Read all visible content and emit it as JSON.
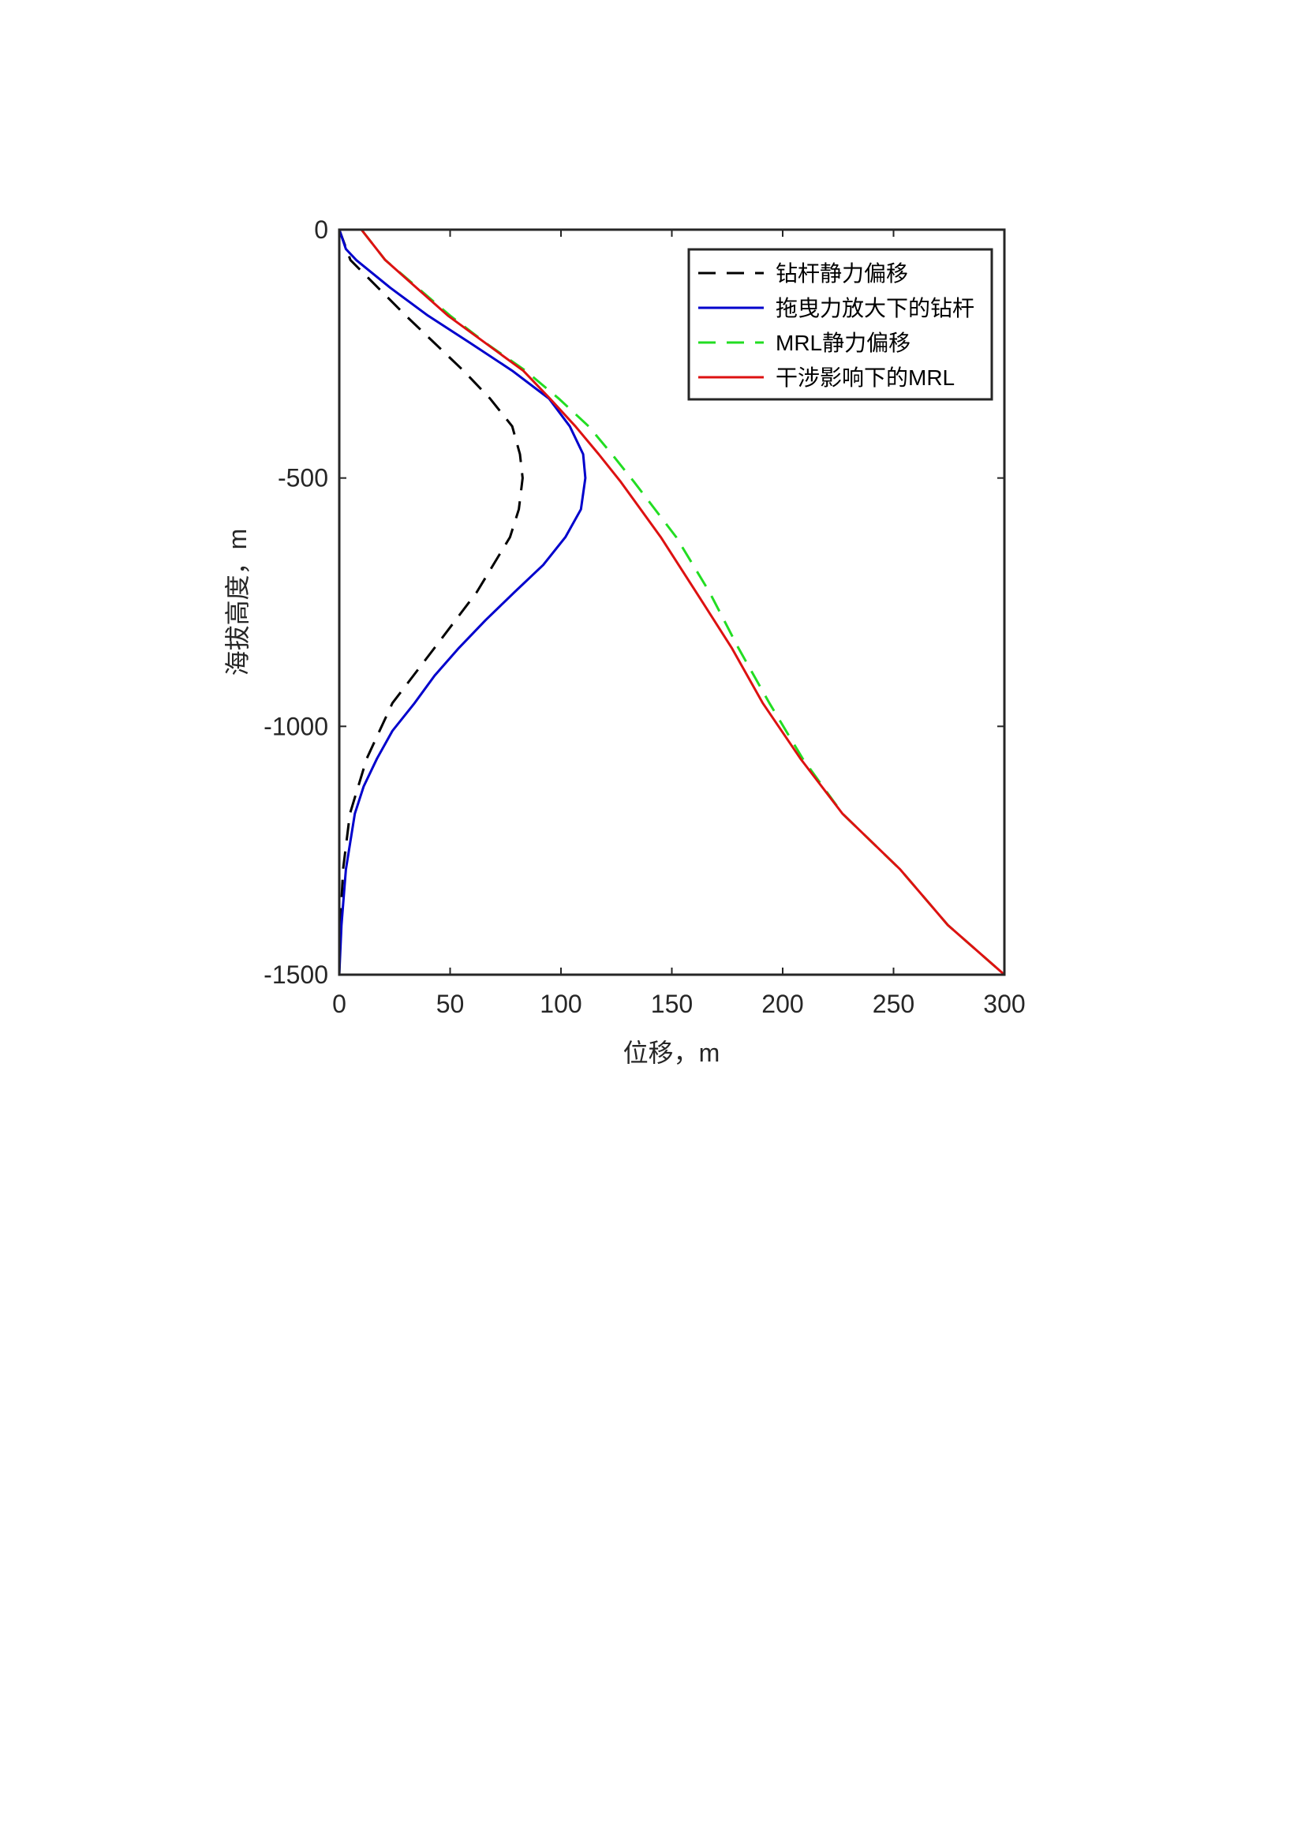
{
  "chart_data": {
    "type": "line",
    "title": "",
    "xlabel": "位移，m",
    "ylabel": "海拔高度，m",
    "xlim": [
      0,
      300
    ],
    "ylim": [
      -1500,
      0
    ],
    "xticks": [
      0,
      50,
      100,
      150,
      200,
      250,
      300
    ],
    "yticks": [
      0,
      -500,
      -1000,
      -1500
    ],
    "xtick_labels": [
      "0",
      "50",
      "100",
      "150",
      "200",
      "250",
      "300"
    ],
    "ytick_labels": [
      "0",
      "-500",
      "-1000",
      "-1500"
    ],
    "grid": false,
    "legend_position": "top-right",
    "series": [
      {
        "name": "钻杆静力偏移",
        "color": "#000000",
        "style": "dashed",
        "points": [
          [
            0,
            0
          ],
          [
            5,
            -61
          ],
          [
            30,
            -173
          ],
          [
            56,
            -284
          ],
          [
            68,
            -340
          ],
          [
            78,
            -396
          ],
          [
            81.5,
            -452
          ],
          [
            82.7,
            -500
          ],
          [
            81,
            -563
          ],
          [
            77,
            -619
          ],
          [
            62,
            -730
          ],
          [
            43,
            -842
          ],
          [
            24,
            -953
          ],
          [
            12.4,
            -1065
          ],
          [
            4.8,
            -1176
          ],
          [
            1.7,
            -1288
          ],
          [
            0.5,
            -1400
          ],
          [
            0,
            -1500
          ]
        ]
      },
      {
        "name": "拖曳力放大下的钻杆",
        "color": "#0000cc",
        "style": "solid",
        "points": [
          [
            0,
            0
          ],
          [
            3,
            -39
          ],
          [
            7.6,
            -61
          ],
          [
            23,
            -117
          ],
          [
            40,
            -173
          ],
          [
            59,
            -228
          ],
          [
            78,
            -284
          ],
          [
            94.6,
            -340
          ],
          [
            104,
            -396
          ],
          [
            110,
            -452
          ],
          [
            111,
            -500
          ],
          [
            109,
            -563
          ],
          [
            102,
            -619
          ],
          [
            92,
            -675
          ],
          [
            79,
            -730
          ],
          [
            66,
            -786
          ],
          [
            54,
            -842
          ],
          [
            43,
            -898
          ],
          [
            34,
            -953
          ],
          [
            24,
            -1009
          ],
          [
            17,
            -1065
          ],
          [
            11,
            -1121
          ],
          [
            7,
            -1176
          ],
          [
            3,
            -1288
          ],
          [
            1,
            -1400
          ],
          [
            0,
            -1500
          ]
        ]
      },
      {
        "name": "MRL静力偏移",
        "color": "#22dd22",
        "style": "dashed",
        "points": [
          [
            10,
            0
          ],
          [
            20.7,
            -61
          ],
          [
            50,
            -173
          ],
          [
            66,
            -228
          ],
          [
            84,
            -284
          ],
          [
            99,
            -340
          ],
          [
            112.5,
            -396
          ],
          [
            123,
            -452
          ],
          [
            133,
            -508
          ],
          [
            152,
            -619
          ],
          [
            167,
            -730
          ],
          [
            180,
            -842
          ],
          [
            194,
            -953
          ],
          [
            209,
            -1065
          ],
          [
            227,
            -1176
          ],
          [
            253,
            -1288
          ],
          [
            274.5,
            -1400
          ],
          [
            300,
            -1500
          ]
        ]
      },
      {
        "name": "干涉影响下的MRL",
        "color": "#dd1111",
        "style": "solid",
        "points": [
          [
            10,
            0
          ],
          [
            20.7,
            -61
          ],
          [
            49,
            -173
          ],
          [
            83,
            -284
          ],
          [
            95,
            -340
          ],
          [
            106.5,
            -396
          ],
          [
            117,
            -452
          ],
          [
            127,
            -508
          ],
          [
            145,
            -619
          ],
          [
            161,
            -730
          ],
          [
            177,
            -842
          ],
          [
            191,
            -953
          ],
          [
            208,
            -1065
          ],
          [
            227,
            -1176
          ],
          [
            253,
            -1288
          ],
          [
            274.5,
            -1400
          ],
          [
            300,
            -1500
          ]
        ]
      }
    ]
  }
}
